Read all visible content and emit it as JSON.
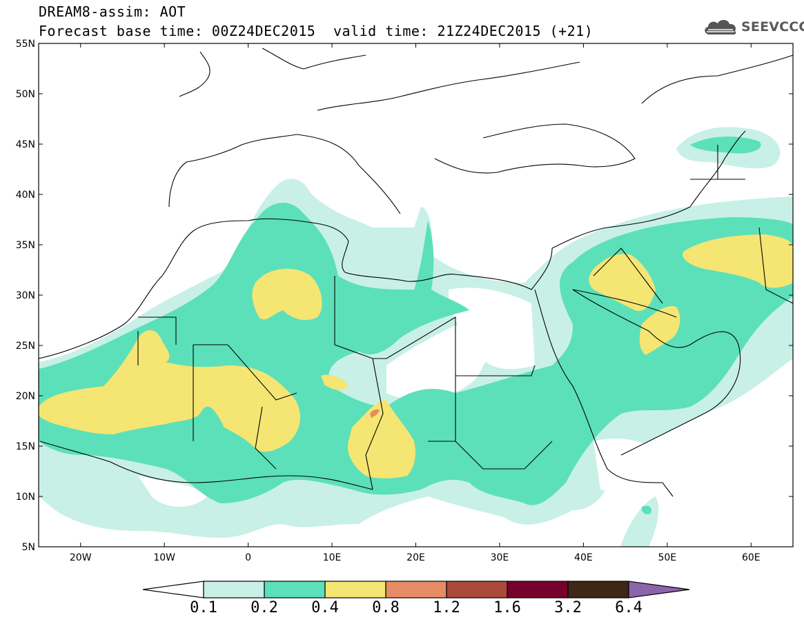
{
  "title": {
    "line1": "DREAM8-assim: AOT",
    "line2": "Forecast base time: 00Z24DEC2015",
    "valid": "valid time: 21Z24DEC2015 (+21)"
  },
  "logo": {
    "text": "SEEVCCC",
    "icon": "cloud-icon"
  },
  "map": {
    "lon_range": [
      -25,
      65
    ],
    "lat_range": [
      5,
      55
    ],
    "lat_labels": [
      "55N",
      "50N",
      "45N",
      "40N",
      "35N",
      "30N",
      "25N",
      "20N",
      "15N",
      "10N",
      "5N"
    ],
    "lon_labels": [
      "20W",
      "10W",
      "0",
      "10E",
      "20E",
      "30E",
      "40E",
      "50E",
      "60E"
    ]
  },
  "colorbar": {
    "labels": [
      "0.1",
      "0.2",
      "0.4",
      "0.8",
      "1.2",
      "1.6",
      "3.2",
      "6.4"
    ],
    "colors": [
      "#ffffff",
      "#c8f0e6",
      "#5ce0b9",
      "#f5e573",
      "#e68c64",
      "#aa4a3c",
      "#78002d",
      "#3c2814",
      "#8c64aa"
    ]
  }
}
